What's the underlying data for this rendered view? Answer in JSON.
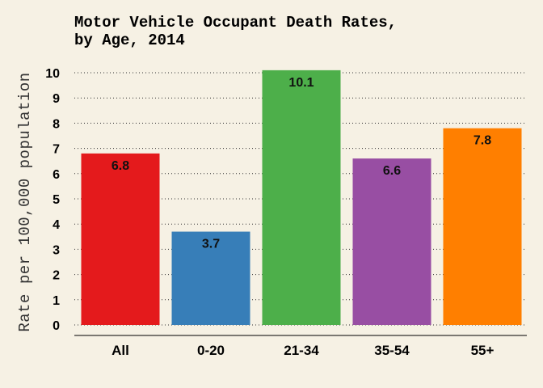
{
  "chart_data": {
    "type": "bar",
    "title_lines": [
      "Motor Vehicle Occupant Death Rates,",
      "by Age, 2014"
    ],
    "ylabel": "Rate per 100,000 population",
    "xlabel": "",
    "categories": [
      "All",
      "0-20",
      "21-34",
      "35-54",
      "55+"
    ],
    "values": [
      6.8,
      3.7,
      10.1,
      6.6,
      7.8
    ],
    "data_labels": [
      "6.8",
      "3.7",
      "10.1",
      "6.6",
      "7.8"
    ],
    "colors": [
      "#e41a1c",
      "#377eb8",
      "#4daf4a",
      "#984ea3",
      "#ff7f00"
    ],
    "ylim": [
      0,
      10
    ],
    "yticks": [
      0,
      1,
      2,
      3,
      4,
      5,
      6,
      7,
      8,
      9,
      10
    ],
    "grid": true,
    "grid_axis": "y",
    "legend": "none"
  }
}
